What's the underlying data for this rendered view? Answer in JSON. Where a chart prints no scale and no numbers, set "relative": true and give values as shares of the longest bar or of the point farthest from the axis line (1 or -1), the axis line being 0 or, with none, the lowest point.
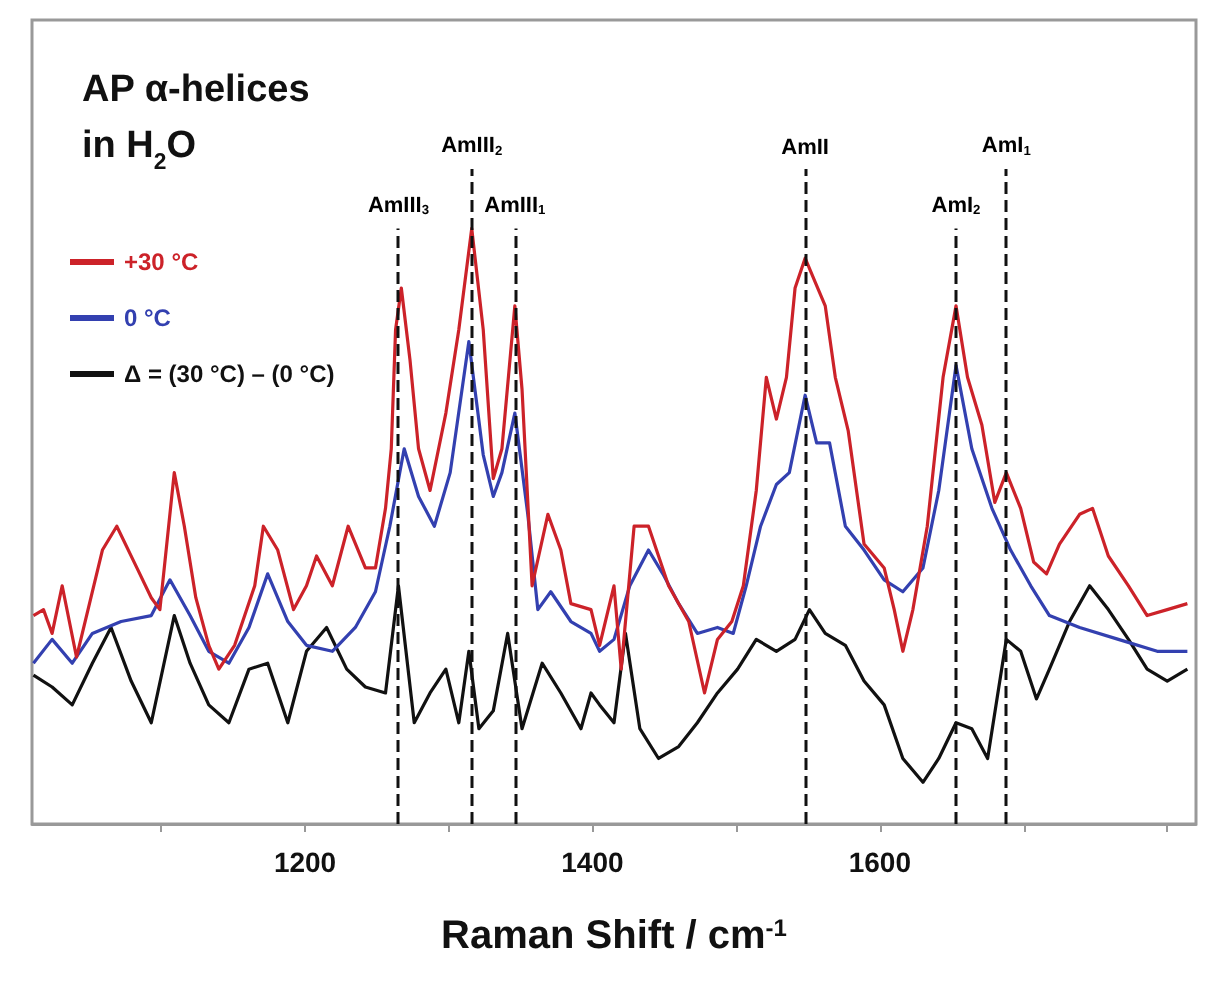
{
  "chart_data": {
    "type": "line",
    "title": "AP α-helices\nin H$_{2}$O",
    "xlabel": "Raman Shift / cm$^{-1}$",
    "relative": true,
    "marker": "none",
    "legend": "top left",
    "xlim": [
      1010,
      1820
    ],
    "xticks": [
      {
        "value": 1100,
        "label": null
      },
      1200,
      {
        "value": 1300,
        "label": null
      },
      1400,
      {
        "value": 1500,
        "label": null
      },
      1600,
      {
        "value": 1700,
        "label": null
      },
      {
        "value": 1800,
        "label": null
      }
    ],
    "series": [
      {
        "name": "+30 °C",
        "color": "#cc2229",
        "x": [
          1011,
          1018,
          1024,
          1031,
          1041,
          1059,
          1069,
          1083,
          1093,
          1099,
          1109,
          1116,
          1124,
          1133,
          1140,
          1151,
          1165,
          1171,
          1181,
          1192,
          1201,
          1208,
          1219,
          1230,
          1242,
          1249,
          1256,
          1260,
          1263,
          1267,
          1273,
          1279,
          1287,
          1298,
          1307,
          1316,
          1324,
          1331,
          1337,
          1346,
          1351,
          1358,
          1369,
          1378,
          1385,
          1399,
          1405,
          1415,
          1420,
          1429,
          1439,
          1453,
          1467,
          1478,
          1487,
          1497,
          1505,
          1514,
          1521,
          1528,
          1535,
          1541,
          1548,
          1555,
          1562,
          1569,
          1578,
          1589,
          1603,
          1610,
          1616,
          1623,
          1633,
          1644,
          1653,
          1661,
          1671,
          1680,
          1688,
          1698,
          1707,
          1716,
          1725,
          1739,
          1748,
          1759,
          1773,
          1786,
          1800,
          1814
        ],
        "values": [
          0.35,
          0.36,
          0.32,
          0.4,
          0.28,
          0.46,
          0.5,
          0.43,
          0.38,
          0.36,
          0.59,
          0.5,
          0.38,
          0.3,
          0.26,
          0.3,
          0.4,
          0.5,
          0.46,
          0.36,
          0.4,
          0.45,
          0.4,
          0.5,
          0.43,
          0.43,
          0.53,
          0.63,
          0.83,
          0.9,
          0.78,
          0.63,
          0.56,
          0.69,
          0.83,
          1.0,
          0.83,
          0.58,
          0.63,
          0.87,
          0.73,
          0.4,
          0.52,
          0.46,
          0.37,
          0.36,
          0.3,
          0.4,
          0.26,
          0.5,
          0.5,
          0.4,
          0.34,
          0.22,
          0.31,
          0.34,
          0.4,
          0.56,
          0.75,
          0.68,
          0.75,
          0.9,
          0.95,
          0.91,
          0.87,
          0.75,
          0.66,
          0.47,
          0.43,
          0.36,
          0.29,
          0.36,
          0.5,
          0.75,
          0.87,
          0.75,
          0.67,
          0.54,
          0.59,
          0.53,
          0.44,
          0.42,
          0.47,
          0.52,
          0.53,
          0.45,
          0.4,
          0.35,
          0.36,
          0.37
        ]
      },
      {
        "name": "0 °C",
        "color": "#3340b0",
        "x": [
          1011,
          1024,
          1038,
          1052,
          1072,
          1093,
          1106,
          1120,
          1133,
          1147,
          1161,
          1174,
          1188,
          1201,
          1219,
          1235,
          1249,
          1259,
          1269,
          1279,
          1290,
          1301,
          1314,
          1324,
          1331,
          1337,
          1346,
          1355,
          1362,
          1371,
          1385,
          1399,
          1405,
          1415,
          1426,
          1439,
          1449,
          1460,
          1473,
          1487,
          1498,
          1507,
          1517,
          1528,
          1537,
          1548,
          1556,
          1565,
          1576,
          1589,
          1603,
          1616,
          1630,
          1641,
          1653,
          1664,
          1678,
          1691,
          1705,
          1718,
          1739,
          1766,
          1793,
          1814
        ],
        "values": [
          0.27,
          0.31,
          0.27,
          0.32,
          0.34,
          0.35,
          0.41,
          0.35,
          0.29,
          0.27,
          0.33,
          0.42,
          0.34,
          0.3,
          0.29,
          0.33,
          0.39,
          0.5,
          0.63,
          0.55,
          0.5,
          0.59,
          0.81,
          0.62,
          0.55,
          0.59,
          0.69,
          0.52,
          0.36,
          0.39,
          0.34,
          0.32,
          0.29,
          0.31,
          0.4,
          0.46,
          0.42,
          0.37,
          0.32,
          0.33,
          0.32,
          0.4,
          0.5,
          0.57,
          0.59,
          0.72,
          0.64,
          0.64,
          0.5,
          0.46,
          0.41,
          0.39,
          0.43,
          0.56,
          0.77,
          0.63,
          0.53,
          0.46,
          0.4,
          0.35,
          0.33,
          0.31,
          0.29,
          0.29
        ]
      },
      {
        "name": "Δ = (30 °C) – (0 °C)",
        "color": "#111111",
        "x": [
          1011,
          1024,
          1038,
          1052,
          1065,
          1079,
          1093,
          1109,
          1120,
          1133,
          1147,
          1161,
          1174,
          1188,
          1201,
          1215,
          1229,
          1242,
          1256,
          1265,
          1276,
          1287,
          1298,
          1307,
          1314,
          1321,
          1331,
          1341,
          1351,
          1365,
          1378,
          1392,
          1399,
          1405,
          1415,
          1423,
          1433,
          1446,
          1460,
          1473,
          1487,
          1501,
          1514,
          1528,
          1541,
          1551,
          1562,
          1576,
          1589,
          1603,
          1616,
          1630,
          1641,
          1653,
          1664,
          1675,
          1688,
          1698,
          1709,
          1718,
          1732,
          1746,
          1759,
          1773,
          1786,
          1800,
          1814
        ],
        "values": [
          0.25,
          0.23,
          0.2,
          0.27,
          0.33,
          0.24,
          0.17,
          0.35,
          0.27,
          0.2,
          0.17,
          0.26,
          0.27,
          0.17,
          0.29,
          0.33,
          0.26,
          0.23,
          0.22,
          0.4,
          0.17,
          0.22,
          0.26,
          0.17,
          0.29,
          0.16,
          0.19,
          0.32,
          0.16,
          0.27,
          0.22,
          0.16,
          0.22,
          0.2,
          0.17,
          0.32,
          0.16,
          0.11,
          0.13,
          0.17,
          0.22,
          0.26,
          0.31,
          0.29,
          0.31,
          0.36,
          0.32,
          0.3,
          0.24,
          0.2,
          0.11,
          0.07,
          0.11,
          0.17,
          0.16,
          0.11,
          0.31,
          0.29,
          0.21,
          0.26,
          0.34,
          0.4,
          0.36,
          0.31,
          0.26,
          0.24,
          0.26
        ]
      }
    ],
    "ref_lines": [
      {
        "axis": "x",
        "value": 1265,
        "label": "AmIII$_{3}$",
        "color": "#111111",
        "line_style": "dashed"
      },
      {
        "axis": "x",
        "value": 1316,
        "label": "AmIII$_{2}$",
        "color": "#111111",
        "line_style": "dashed"
      },
      {
        "axis": "x",
        "value": 1346,
        "label": "AmIII$_{1}$",
        "color": "#111111",
        "line_style": "dashed"
      },
      {
        "axis": "x",
        "value": 1548,
        "label": "AmII",
        "color": "#111111",
        "line_style": "dashed"
      },
      {
        "axis": "x",
        "value": 1653,
        "label": "AmI$_{2}$",
        "color": "#111111",
        "line_style": "dashed"
      },
      {
        "axis": "x",
        "value": 1688,
        "label": "AmI$_{1}$",
        "color": "#111111",
        "line_style": "dashed"
      }
    ]
  }
}
